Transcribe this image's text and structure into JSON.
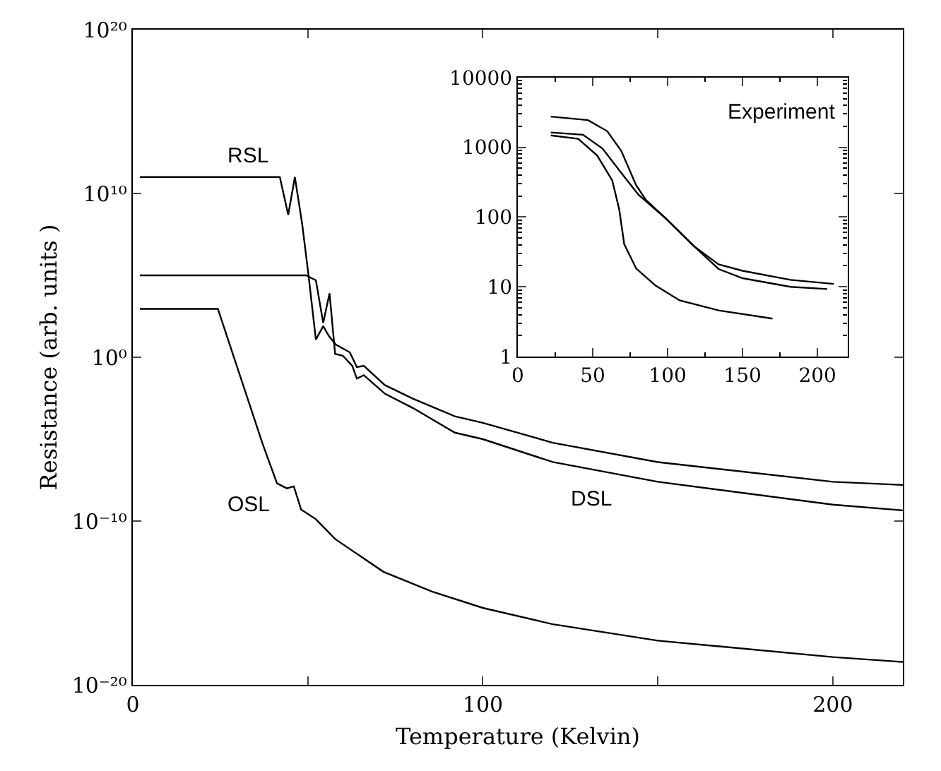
{
  "chart_data": [
    {
      "type": "line",
      "xlabel": "Temperature (Kelvin)",
      "ylabel": "Resistance (arb. units )",
      "log": "y",
      "xlim": [
        0,
        220
      ],
      "xticks": [
        0,
        {
          "value": 50,
          "label": null
        },
        100,
        {
          "value": 150,
          "label": null
        },
        200
      ],
      "ylim": [
        1e-20,
        1e+20
      ],
      "yticks": [
        {
          "value": 1e-20,
          "label": "10⁻²⁰"
        },
        {
          "value": 1e-10,
          "label": "10⁻¹⁰"
        },
        {
          "value": 1,
          "label": "10⁰"
        },
        {
          "value": 10000000000.0,
          "label": "10¹⁰"
        },
        {
          "value": 1e+20,
          "label": "10²⁰"
        }
      ],
      "series": [
        {
          "name": "RSL",
          "color": "#000000",
          "x": [
            2,
            42,
            44.4,
            46.3,
            48.4,
            50.2,
            52.3,
            54.4,
            56,
            58,
            62,
            64,
            66,
            72,
            80,
            92,
            100,
            120,
            150,
            200,
            220
          ],
          "values": [
            100000000000.0,
            100000000000.0,
            500000000.0,
            100000000000.0,
            130000000.0,
            100000.0,
            12,
            80,
            20,
            6,
            2,
            0.25,
            0.3,
            0.02,
            0.003,
            0.00025,
            0.0001,
            6e-06,
            4e-07,
            2.5e-08,
            1.6e-08
          ]
        },
        {
          "name": "DSL",
          "color": "#000000",
          "x": [
            2,
            49.5,
            52.3,
            54.4,
            56.2,
            57.8,
            60,
            62.7,
            64,
            66,
            72,
            80,
            92,
            100,
            120,
            150,
            200,
            220
          ],
          "values": [
            100000.0,
            100000.0,
            50000.0,
            125,
            8000,
            1.6,
            1.25,
            0.3,
            0.05,
            0.08,
            0.006,
            0.0008,
            2.5e-05,
            1e-05,
            4e-07,
            2.5e-08,
            1e-09,
            4.5e-10
          ]
        },
        {
          "name": "OSL",
          "color": "#000000",
          "x": [
            2,
            24.3,
            37.1,
            41.2,
            44,
            46,
            48.1,
            52.3,
            57.8,
            71.6,
            85.5,
            100,
            120,
            150,
            200,
            220
          ],
          "values": [
            900,
            900,
            5e-06,
            2e-08,
            1e-08,
            1.3e-08,
            5e-10,
            1.3e-10,
            8e-12,
            8e-14,
            5e-15,
            5e-16,
            5e-17,
            5e-18,
            5e-19,
            2.5e-19
          ]
        }
      ]
    },
    {
      "type": "line",
      "log": "y",
      "annotations": [
        "Experiment"
      ],
      "xlim": [
        0,
        220
      ],
      "xticks": [
        0,
        50,
        100,
        150,
        200
      ],
      "ylim": [
        1,
        10000
      ],
      "yticks": [
        1,
        10,
        100,
        1000,
        10000
      ],
      "series": [
        {
          "color": "#000000",
          "x": [
            22,
            46.8,
            59.7,
            69,
            79,
            85.5,
            98.4,
            117.7,
            134,
            150,
            182,
            211
          ],
          "values": [
            2750,
            2450,
            1700,
            890,
            285,
            176,
            97,
            38,
            21,
            17,
            12.6,
            11
          ]
        },
        {
          "color": "#000000",
          "x": [
            22,
            43.5,
            56.5,
            69,
            80.6,
            98.4,
            117.7,
            134,
            150,
            182,
            206.5
          ],
          "values": [
            1630,
            1510,
            960,
            430,
            208,
            97,
            38,
            18,
            13.3,
            10,
            9.3
          ]
        },
        {
          "color": "#000000",
          "x": [
            22,
            40.3,
            53,
            63,
            67.7,
            71,
            79,
            92,
            108,
            134,
            170
          ],
          "values": [
            1480,
            1320,
            760,
            335,
            128,
            41,
            18.3,
            10.4,
            6.4,
            4.6,
            3.5
          ]
        }
      ]
    }
  ]
}
